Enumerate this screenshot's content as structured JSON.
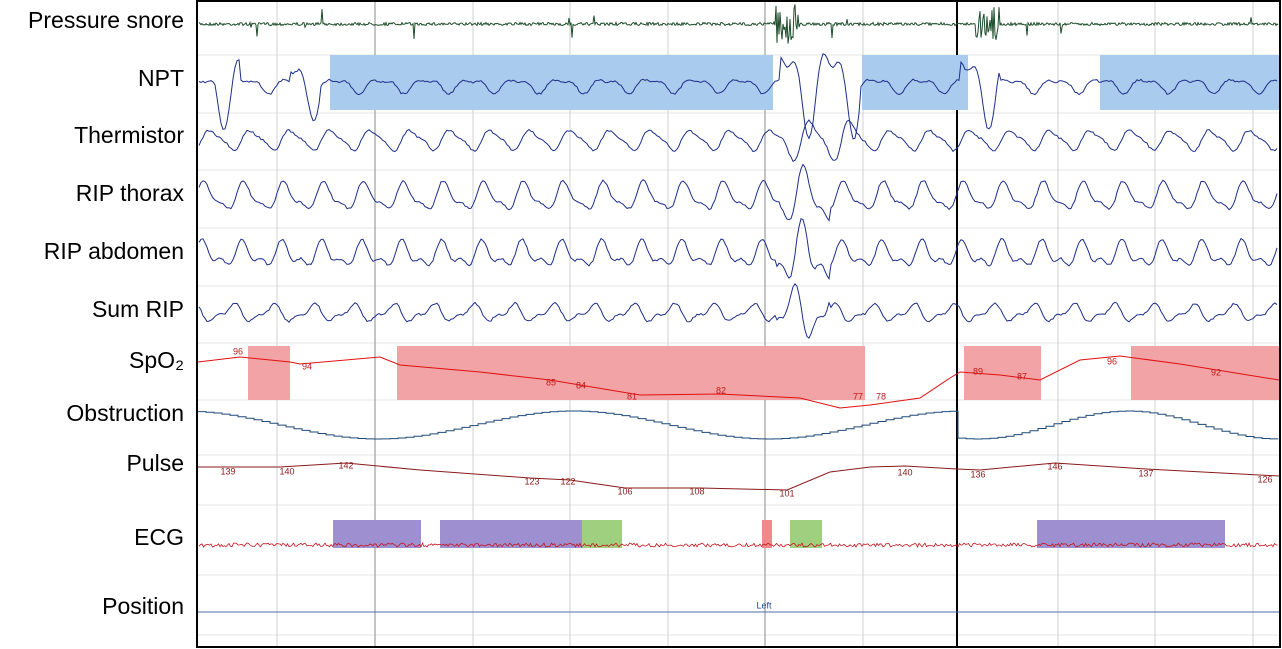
{
  "channels": [
    "Pressure snore",
    "NPT",
    "Thermistor",
    "RIP thorax",
    "RIP abdomen",
    "Sum RIP",
    "SpO₂",
    "Obstruction",
    "Pulse",
    "ECG",
    "Position"
  ],
  "spo2_labels": [
    96,
    94,
    85,
    84,
    81,
    82,
    77,
    78,
    89,
    87,
    96,
    92
  ],
  "pulse_labels": [
    139,
    140,
    142,
    123,
    122,
    106,
    108,
    101,
    140,
    136,
    146,
    137,
    126
  ],
  "position_label": "Left"
}
